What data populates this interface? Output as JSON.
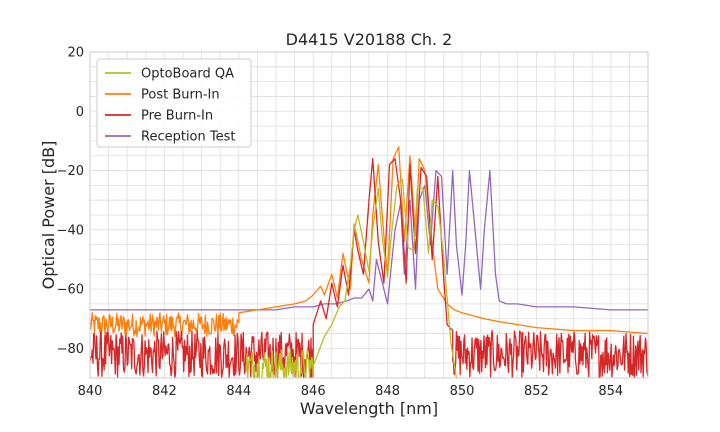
{
  "chart_data": {
    "type": "line",
    "title": "D4415 V20188 Ch. 2",
    "xlabel": "Wavelength [nm]",
    "ylabel": "Optical Power [dB]",
    "xlim": [
      840,
      855
    ],
    "ylim": [
      -90,
      20
    ],
    "xticks": [
      840,
      842,
      844,
      846,
      848,
      850,
      852,
      854
    ],
    "yticks": [
      20,
      0,
      -20,
      -40,
      -60,
      -80
    ],
    "ytick_labels": [
      "20",
      "0",
      "−20",
      "−40",
      "−60",
      "−80"
    ],
    "grid": true,
    "legend_position": "top-left",
    "series": [
      {
        "name": "OptoBoard QA",
        "color": "#bcbd22",
        "noise": {
          "x_start": 844.2,
          "x_end": 846.0,
          "base": -86,
          "amp": 6,
          "step": 0.02
        },
        "x": [
          846.0,
          846.3,
          846.5,
          846.7,
          846.85,
          847.0,
          847.1,
          847.2,
          847.35,
          847.5,
          847.6,
          847.75,
          847.85,
          848.0,
          848.1,
          848.25,
          848.4,
          848.55,
          848.7,
          848.8,
          848.95,
          849.1,
          849.2,
          849.35,
          849.5,
          849.7,
          849.85,
          850.0
        ],
        "y": [
          -86,
          -76,
          -72,
          -66,
          -64,
          -52,
          -40,
          -35,
          -44,
          -54,
          -40,
          -26,
          -42,
          -56,
          -42,
          -25,
          -23,
          -46,
          -47,
          -26,
          -26,
          -48,
          -30,
          -32,
          -48,
          -78,
          -90,
          -90
        ]
      },
      {
        "name": "Post Burn-In",
        "color": "#ff7f0e",
        "noise": {
          "x_start": 840.0,
          "x_end": 844.0,
          "base": -72,
          "amp": 4,
          "step": 0.02
        },
        "x": [
          844.0,
          844.5,
          845.0,
          845.5,
          845.8,
          846.0,
          846.2,
          846.3,
          846.5,
          846.65,
          846.8,
          847.0,
          847.1,
          847.3,
          847.5,
          847.6,
          847.75,
          847.9,
          848.0,
          848.15,
          848.3,
          848.45,
          848.6,
          848.75,
          848.85,
          849.0,
          849.2,
          849.35,
          849.45,
          849.6,
          849.8,
          850.0,
          850.3,
          850.6,
          851.0,
          851.5,
          852.0,
          853.0,
          854.0,
          855.0
        ],
        "y": [
          -68,
          -67,
          -66,
          -65,
          -64,
          -62,
          -59,
          -62,
          -55,
          -63,
          -48,
          -60,
          -38,
          -50,
          -58,
          -35,
          -18,
          -42,
          -55,
          -16,
          -12,
          -44,
          -15,
          -42,
          -16,
          -20,
          -45,
          -60,
          -62,
          -65,
          -67,
          -68,
          -69,
          -70,
          -71,
          -72,
          -73,
          -74,
          -74,
          -75
        ]
      },
      {
        "name": "Pre Burn-In",
        "color": "#d62728",
        "noise": {
          "x_start": 840.0,
          "x_end": 846.0,
          "base": -82,
          "amp": 8,
          "step": 0.02
        },
        "x": [
          846.0,
          846.2,
          846.35,
          846.5,
          846.65,
          846.8,
          846.95,
          847.1,
          847.2,
          847.35,
          847.5,
          847.6,
          847.75,
          847.9,
          848.05,
          848.2,
          848.35,
          848.5,
          848.6,
          848.75,
          848.9,
          849.05,
          849.2,
          849.35,
          849.5,
          849.6,
          849.75
        ],
        "y": [
          -72,
          -64,
          -70,
          -58,
          -66,
          -52,
          -62,
          -40,
          -47,
          -55,
          -30,
          -16,
          -44,
          -58,
          -18,
          -16,
          -30,
          -58,
          -18,
          -48,
          -19,
          -22,
          -50,
          -22,
          -55,
          -72,
          -74
        ],
        "noise2": {
          "x_start": 849.75,
          "x_end": 855.0,
          "base": -82,
          "amp": 8,
          "step": 0.02
        }
      },
      {
        "name": "Reception Test",
        "color": "#9467bd",
        "x": [
          840.0,
          841.0,
          842.0,
          843.0,
          844.0,
          845.0,
          845.5,
          846.0,
          846.3,
          846.6,
          846.9,
          847.1,
          847.3,
          847.5,
          847.6,
          847.7,
          847.9,
          848.0,
          848.1,
          848.2,
          848.35,
          848.45,
          848.6,
          848.75,
          848.85,
          849.0,
          849.15,
          849.3,
          849.45,
          849.6,
          849.75,
          849.85,
          850.0,
          850.1,
          850.2,
          850.35,
          850.5,
          850.6,
          850.75,
          850.9,
          851.0,
          851.2,
          851.5,
          852.0,
          853.0,
          854.0,
          855.0
        ],
        "y": [
          -67,
          -67,
          -67,
          -67,
          -67,
          -67,
          -66,
          -66,
          -65,
          -65,
          -64,
          -63,
          -63,
          -60,
          -64,
          -50,
          -60,
          -65,
          -52,
          -40,
          -31,
          -55,
          -30,
          -60,
          -30,
          -25,
          -45,
          -20,
          -22,
          -55,
          -20,
          -45,
          -62,
          -45,
          -20,
          -40,
          -60,
          -40,
          -20,
          -55,
          -64,
          -65,
          -65,
          -66,
          -66,
          -67,
          -67
        ]
      }
    ]
  }
}
